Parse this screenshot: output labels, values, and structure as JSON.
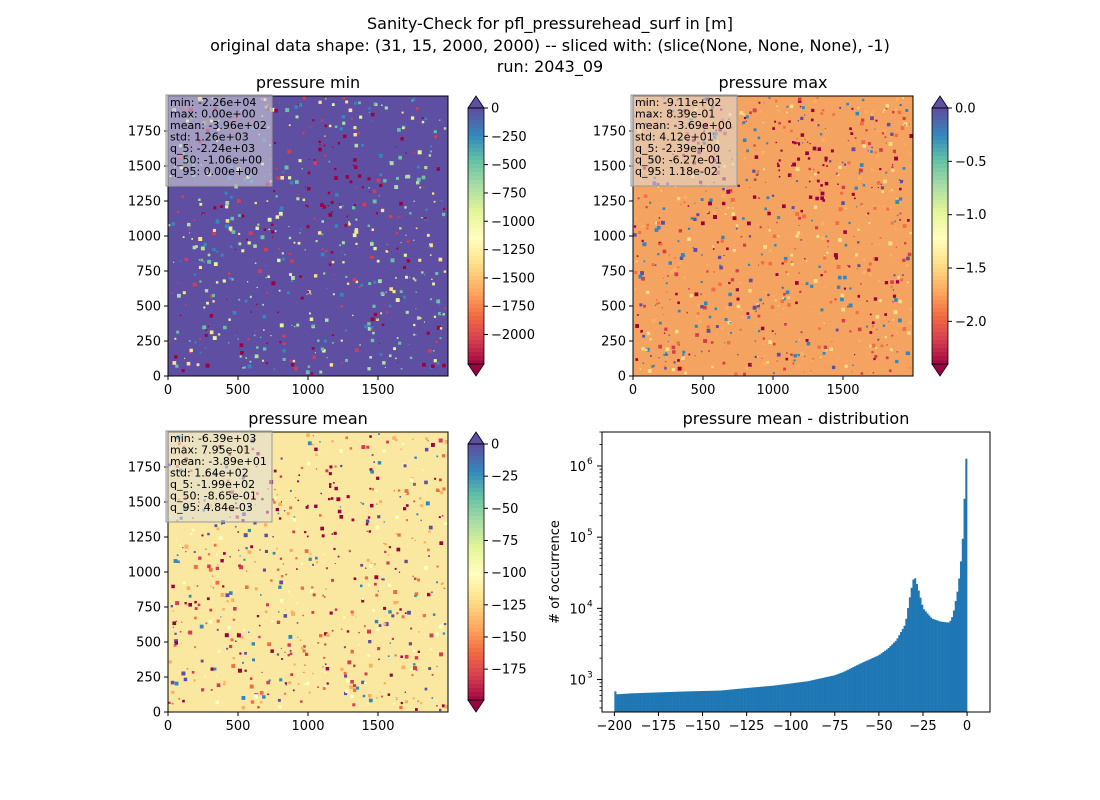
{
  "figure": {
    "title_lines": [
      "Sanity-Check for pfl_pressurehead_surf in [m]",
      "original data shape: (31, 15, 2000, 2000) -- sliced with: (slice(None, None, None), -1)",
      "run: 2043_09"
    ]
  },
  "chart_data": [
    {
      "type": "heatmap",
      "title": "pressure min",
      "colormap": "Spectral",
      "xlim": [
        0,
        2000
      ],
      "ylim": [
        0,
        2000
      ],
      "xticks": [
        0,
        500,
        1000,
        1500
      ],
      "yticks": [
        0,
        250,
        500,
        750,
        1000,
        1250,
        1500,
        1750
      ],
      "colorbar": {
        "min": -2260,
        "max": 0,
        "ticks": [
          0,
          -250,
          -500,
          -750,
          -1000,
          -1250,
          -1500,
          -1750,
          -2000
        ],
        "tick_labels": [
          "0",
          "−250",
          "−500",
          "−750",
          "−1000",
          "−1250",
          "−1500",
          "−1750",
          "−2000"
        ],
        "extend": "both"
      },
      "dominant_fill": "#5e4fa2",
      "stats": [
        "min: -2.26e+04",
        "max: 0.00e+00",
        "mean: -3.96e+02",
        "std: 1.26e+03",
        "q_5: -2.24e+03",
        "q_50: -1.06e+00",
        "q_95: 0.00e+00"
      ]
    },
    {
      "type": "heatmap",
      "title": "pressure max",
      "colormap": "Spectral",
      "xlim": [
        0,
        2000
      ],
      "ylim": [
        0,
        2000
      ],
      "xticks": [
        0,
        500,
        1000,
        1500
      ],
      "yticks": [
        0,
        250,
        500,
        750,
        1000,
        1250,
        1500,
        1750
      ],
      "colorbar": {
        "min": -2.4,
        "max": 0.0,
        "ticks": [
          0.0,
          -0.5,
          -1.0,
          -1.5,
          -2.0
        ],
        "tick_labels": [
          "0.0",
          "−0.5",
          "−1.0",
          "−1.5",
          "−2.0"
        ],
        "extend": "both"
      },
      "dominant_fill": "#f4a460",
      "stats": [
        "min: -9.11e+02",
        "max: 8.39e-01",
        "mean: -3.69e+00",
        "std: 4.12e+01",
        "q_5: -2.39e+00",
        "q_50: -6.27e-01",
        "q_95: 1.18e-02"
      ]
    },
    {
      "type": "heatmap",
      "title": "pressure mean",
      "colormap": "Spectral",
      "xlim": [
        0,
        2000
      ],
      "ylim": [
        0,
        2000
      ],
      "xticks": [
        0,
        500,
        1000,
        1500
      ],
      "yticks": [
        0,
        250,
        500,
        750,
        1000,
        1250,
        1500,
        1750
      ],
      "colorbar": {
        "min": -199,
        "max": 0,
        "ticks": [
          0,
          -25,
          -50,
          -75,
          -100,
          -125,
          -150,
          -175
        ],
        "tick_labels": [
          "0",
          "−25",
          "−50",
          "−75",
          "−100",
          "−125",
          "−150",
          "−175"
        ],
        "extend": "both"
      },
      "dominant_fill": "#fbe8a0",
      "stats": [
        "min: -6.39e+03",
        "max: 7.95e-01",
        "mean: -3.89e+01",
        "std: 1.64e+02",
        "q_5: -1.99e+02",
        "q_50: -8.65e-01",
        "q_95: 4.84e-03"
      ]
    },
    {
      "type": "bar",
      "subtype": "histogram",
      "title": "pressure mean - distribution",
      "ylabel": "# of occurrence",
      "yscale": "log",
      "xlim": [
        -207,
        13
      ],
      "ylim": [
        350,
        3000000
      ],
      "xticks": [
        -200,
        -175,
        -150,
        -125,
        -100,
        -75,
        -50,
        -25,
        0
      ],
      "xtick_labels": [
        "−200",
        "−175",
        "−150",
        "−125",
        "−100",
        "−75",
        "−50",
        "−25",
        "0"
      ],
      "yticks": [
        1000,
        10000,
        100000,
        1000000
      ],
      "ytick_labels": [
        "10",
        "10",
        "10",
        "10"
      ],
      "ytick_exponents": [
        "3",
        "4",
        "5",
        "6"
      ],
      "bar_color": "#1f77b4",
      "anchors": [
        [
          -200,
          750
        ],
        [
          -199,
          620
        ],
        [
          -190,
          640
        ],
        [
          -175,
          660
        ],
        [
          -160,
          680
        ],
        [
          -150,
          690
        ],
        [
          -140,
          700
        ],
        [
          -125,
          760
        ],
        [
          -110,
          820
        ],
        [
          -100,
          880
        ],
        [
          -90,
          950
        ],
        [
          -80,
          1080
        ],
        [
          -75,
          1150
        ],
        [
          -70,
          1280
        ],
        [
          -60,
          1700
        ],
        [
          -50,
          2200
        ],
        [
          -45,
          2700
        ],
        [
          -40,
          3600
        ],
        [
          -35,
          6000
        ],
        [
          -32,
          17000
        ],
        [
          -30,
          29000
        ],
        [
          -28,
          20000
        ],
        [
          -25,
          10000
        ],
        [
          -20,
          7200
        ],
        [
          -15,
          6500
        ],
        [
          -10,
          6300
        ],
        [
          -8,
          8000
        ],
        [
          -5,
          20000
        ],
        [
          -3,
          60000
        ],
        [
          -2,
          150000
        ],
        [
          -1,
          800000
        ],
        [
          0,
          2000000
        ]
      ]
    }
  ]
}
